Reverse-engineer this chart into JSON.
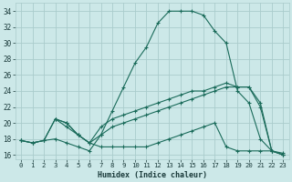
{
  "xlabel": "Humidex (Indice chaleur)",
  "background_color": "#cce8e8",
  "grid_color": "#aacccc",
  "line_color": "#1a6b5a",
  "xlim": [
    -0.5,
    23.5
  ],
  "ylim": [
    15.5,
    35.0
  ],
  "xticks": [
    0,
    1,
    2,
    3,
    4,
    5,
    6,
    7,
    8,
    9,
    10,
    11,
    12,
    13,
    14,
    15,
    16,
    17,
    18,
    19,
    20,
    21,
    22,
    23
  ],
  "yticks": [
    16,
    18,
    20,
    22,
    24,
    26,
    28,
    30,
    32,
    34
  ],
  "lines": [
    {
      "x": [
        0,
        1,
        2,
        3,
        4,
        5,
        6,
        7,
        8,
        9,
        10,
        11,
        12,
        13,
        14,
        15,
        16,
        17,
        18,
        19,
        20,
        21,
        22,
        23
      ],
      "y": [
        17.8,
        17.5,
        17.8,
        18.0,
        17.5,
        17.0,
        16.5,
        18.5,
        21.5,
        24.5,
        27.5,
        29.5,
        32.5,
        34.0,
        34.0,
        34.0,
        33.5,
        31.5,
        30.0,
        24.0,
        22.5,
        18.0,
        16.5,
        16.0
      ]
    },
    {
      "x": [
        0,
        1,
        2,
        3,
        4,
        5,
        6,
        7,
        8,
        9,
        10,
        11,
        12,
        13,
        14,
        15,
        16,
        17,
        18,
        19,
        20,
        21,
        22,
        23
      ],
      "y": [
        17.8,
        17.5,
        17.8,
        20.5,
        20.0,
        18.5,
        17.5,
        19.5,
        20.5,
        21.0,
        21.5,
        22.0,
        22.5,
        23.0,
        23.5,
        24.0,
        24.0,
        24.5,
        25.0,
        24.5,
        24.5,
        22.5,
        16.5,
        16.0
      ]
    },
    {
      "x": [
        3,
        4,
        5,
        6,
        7,
        8,
        9,
        10,
        11,
        12,
        13,
        14,
        15,
        16,
        17,
        18,
        19,
        20,
        21,
        22,
        23
      ],
      "y": [
        20.5,
        19.5,
        18.5,
        17.5,
        17.0,
        17.0,
        17.0,
        17.0,
        17.0,
        17.5,
        18.0,
        18.5,
        19.0,
        19.5,
        20.0,
        17.0,
        16.5,
        16.5,
        16.5,
        16.5,
        16.2
      ]
    },
    {
      "x": [
        0,
        1,
        2,
        3,
        4,
        5,
        6,
        7,
        8,
        9,
        10,
        11,
        12,
        13,
        14,
        15,
        16,
        17,
        18,
        19,
        20,
        21,
        22,
        23
      ],
      "y": [
        17.8,
        17.5,
        17.8,
        20.5,
        20.0,
        18.5,
        17.5,
        18.5,
        19.5,
        20.0,
        20.5,
        21.0,
        21.5,
        22.0,
        22.5,
        23.0,
        23.5,
        24.0,
        24.5,
        24.5,
        24.5,
        22.0,
        16.5,
        16.0
      ]
    }
  ]
}
